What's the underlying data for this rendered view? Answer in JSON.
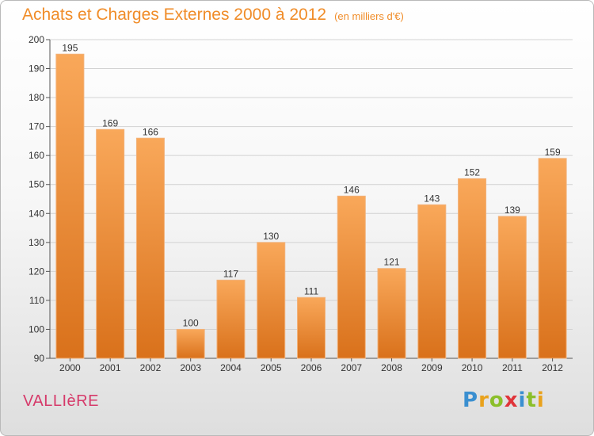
{
  "title": "Achats et Charges Externes 2000 à 2012",
  "subtitle": "(en milliers d'€)",
  "commune": "VALLIèRE",
  "logo": [
    "P",
    "r",
    "o",
    "x",
    "i",
    "t",
    "i"
  ],
  "colors": {
    "bar_top": "#f9a85a",
    "bar_bottom": "#d9711b",
    "title": "#f08c28",
    "commune": "#d63a6a"
  },
  "chart_data": {
    "type": "bar",
    "categories": [
      "2000",
      "2001",
      "2002",
      "2003",
      "2004",
      "2005",
      "2006",
      "2007",
      "2008",
      "2009",
      "2010",
      "2011",
      "2012"
    ],
    "values": [
      195,
      169,
      166,
      100,
      117,
      130,
      111,
      146,
      121,
      143,
      152,
      139,
      159
    ],
    "ylim": [
      90,
      200
    ],
    "yticks": [
      90,
      100,
      110,
      120,
      130,
      140,
      150,
      160,
      170,
      180,
      190,
      200
    ],
    "grid": true
  }
}
